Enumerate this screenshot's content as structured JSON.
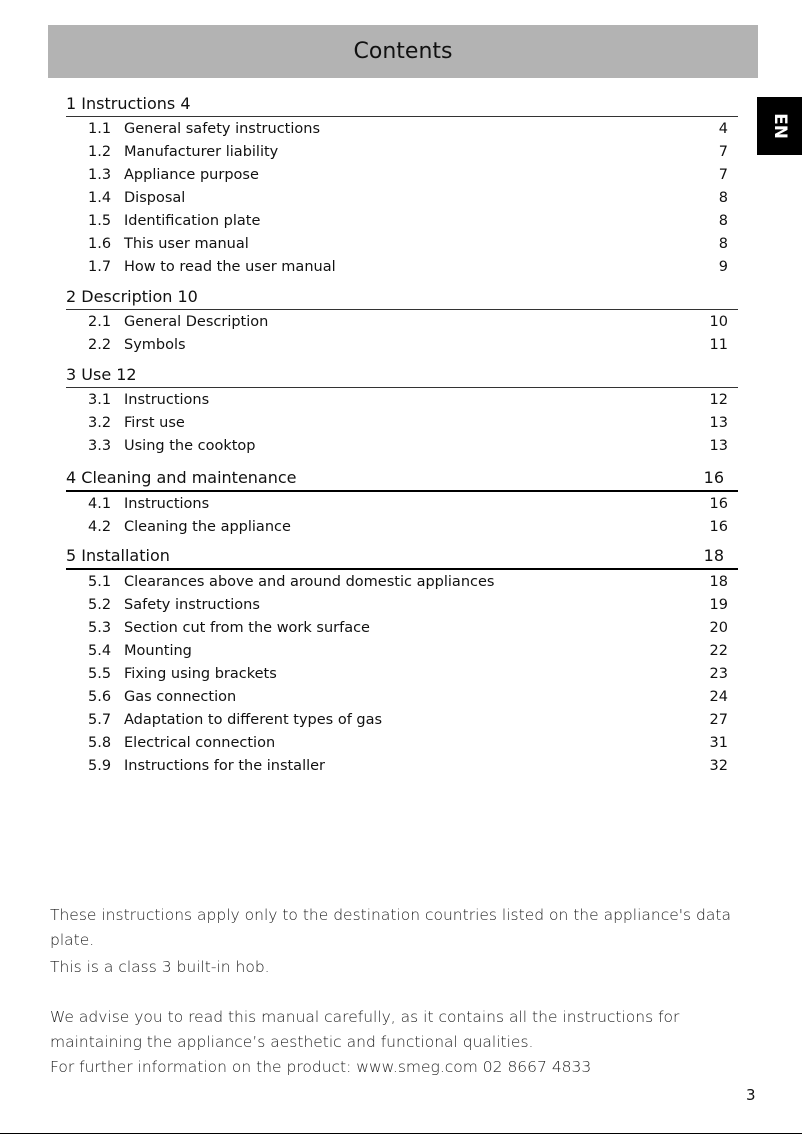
{
  "title": "Contents",
  "language_tab": "EN",
  "sections": [
    {
      "label": "1  Instructions 4",
      "page": "",
      "items": [
        {
          "num": "1.1",
          "label": "General safety instructions",
          "page": "4"
        },
        {
          "num": "1.2",
          "label": "Manufacturer liability",
          "page": "7"
        },
        {
          "num": "1.3",
          "label": "Appliance purpose",
          "page": "7"
        },
        {
          "num": "1.4",
          "label": "Disposal",
          "page": "8"
        },
        {
          "num": "1.5",
          "label": "Identification plate",
          "page": "8"
        },
        {
          "num": "1.6",
          "label": "This user manual",
          "page": "8"
        },
        {
          "num": "1.7",
          "label": "How to read the user manual",
          "page": "9"
        }
      ]
    },
    {
      "label": "2 Description 10",
      "page": "",
      "items": [
        {
          "num": "2.1",
          "label": "General Description",
          "page": "10"
        },
        {
          "num": "2.2",
          "label": "Symbols",
          "page": "11"
        }
      ]
    },
    {
      "label": "3 Use 12",
      "page": "",
      "items": [
        {
          "num": "3.1",
          "label": "Instructions",
          "page": "12"
        },
        {
          "num": "3.2",
          "label": "First use",
          "page": "13"
        },
        {
          "num": "3.3",
          "label": "Using the cooktop",
          "page": "13"
        }
      ]
    },
    {
      "label": "4 Cleaning and maintenance",
      "page": "16",
      "items": [
        {
          "num": "4.1",
          "label": "Instructions",
          "page": "16"
        },
        {
          "num": "4.2",
          "label": "Cleaning the appliance",
          "page": "16"
        }
      ]
    },
    {
      "label": "5 Installation",
      "page": "18",
      "items": [
        {
          "num": "5.1",
          "label": "Clearances above and around domestic appliances",
          "page": "18"
        },
        {
          "num": "5.2",
          "label": "Safety instructions",
          "page": "19"
        },
        {
          "num": "5.3",
          "label": "Section cut from the work surface",
          "page": "20"
        },
        {
          "num": "5.4",
          "label": "Mounting",
          "page": "22"
        },
        {
          "num": "5.5",
          "label": "Fixing using brackets",
          "page": "23"
        },
        {
          "num": "5.6",
          "label": "Gas connection",
          "page": "24"
        },
        {
          "num": "5.7",
          "label": "Adaptation to different types of gas",
          "page": "27"
        },
        {
          "num": "5.8",
          "label": "Electrical connection",
          "page": "31"
        },
        {
          "num": "5.9",
          "label": "Instructions for the installer",
          "page": "32"
        }
      ]
    }
  ],
  "notes": {
    "p1": "These instructions apply only to the destination countries listed on the appliance's data plate.",
    "p2": "This is a class 3 built-in hob.",
    "p3": "We advise you to read this manual carefully, as it contains all the instructions for maintaining the appliance’s aesthetic and functional qualities.",
    "p4": "For further information on the product: www.smeg.com   02 8667 4833"
  },
  "page_number": "3"
}
